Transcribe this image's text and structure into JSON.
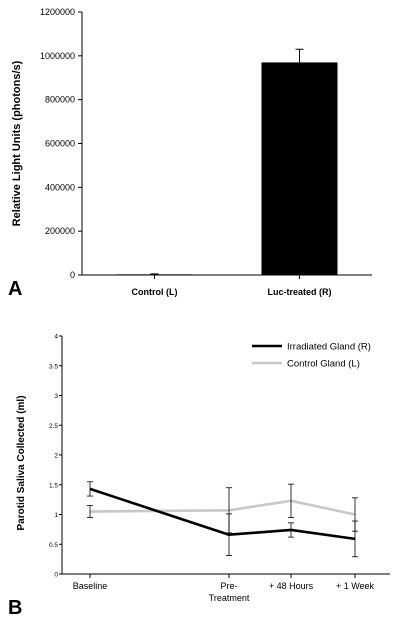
{
  "panels": {
    "a": "A",
    "b": "B"
  },
  "chart_data": [
    {
      "type": "bar",
      "ylabel": "Relative Light Units (photons/s)",
      "categories": [
        "Control (L)",
        "Luc-treated (R)"
      ],
      "values": [
        3000,
        970000
      ],
      "errors": [
        2000,
        60000
      ],
      "ylim": [
        0,
        1200000
      ],
      "yticks": [
        0,
        200000,
        400000,
        600000,
        800000,
        1000000,
        1200000
      ],
      "ytick_labels": [
        "0",
        "200000",
        "400000",
        "600000",
        "800000",
        "1000000",
        "1200000"
      ],
      "colors": [
        "#000000",
        "#000000"
      ]
    },
    {
      "type": "line",
      "ylabel": "Parotid Saliva Collected (ml)",
      "x_positions": [
        0,
        2,
        3,
        4
      ],
      "x_labels": [
        "Baseline",
        "Pre-\nTreatment",
        "+ 48 Hours",
        "+ 1 Week"
      ],
      "ylim": [
        0,
        4
      ],
      "yticks": [
        0,
        0.5,
        1,
        1.5,
        2,
        2.5,
        3,
        3.5,
        4
      ],
      "ytick_labels": [
        "0",
        "0.5",
        "1",
        "1.5",
        "2",
        "2.5",
        "3",
        "3.5",
        "4"
      ],
      "legend_position": "top-right",
      "series": [
        {
          "name": "Irradiated Gland (R)",
          "color": "#000000",
          "values": [
            1.43,
            0.66,
            0.74,
            0.59
          ],
          "errors": [
            0.12,
            0.35,
            0.12,
            0.3
          ]
        },
        {
          "name": "Control Gland (L)",
          "color": "#c8c8c8",
          "values": [
            1.05,
            1.07,
            1.23,
            1.0
          ],
          "errors": [
            0.1,
            0.38,
            0.28,
            0.28
          ]
        }
      ]
    }
  ]
}
